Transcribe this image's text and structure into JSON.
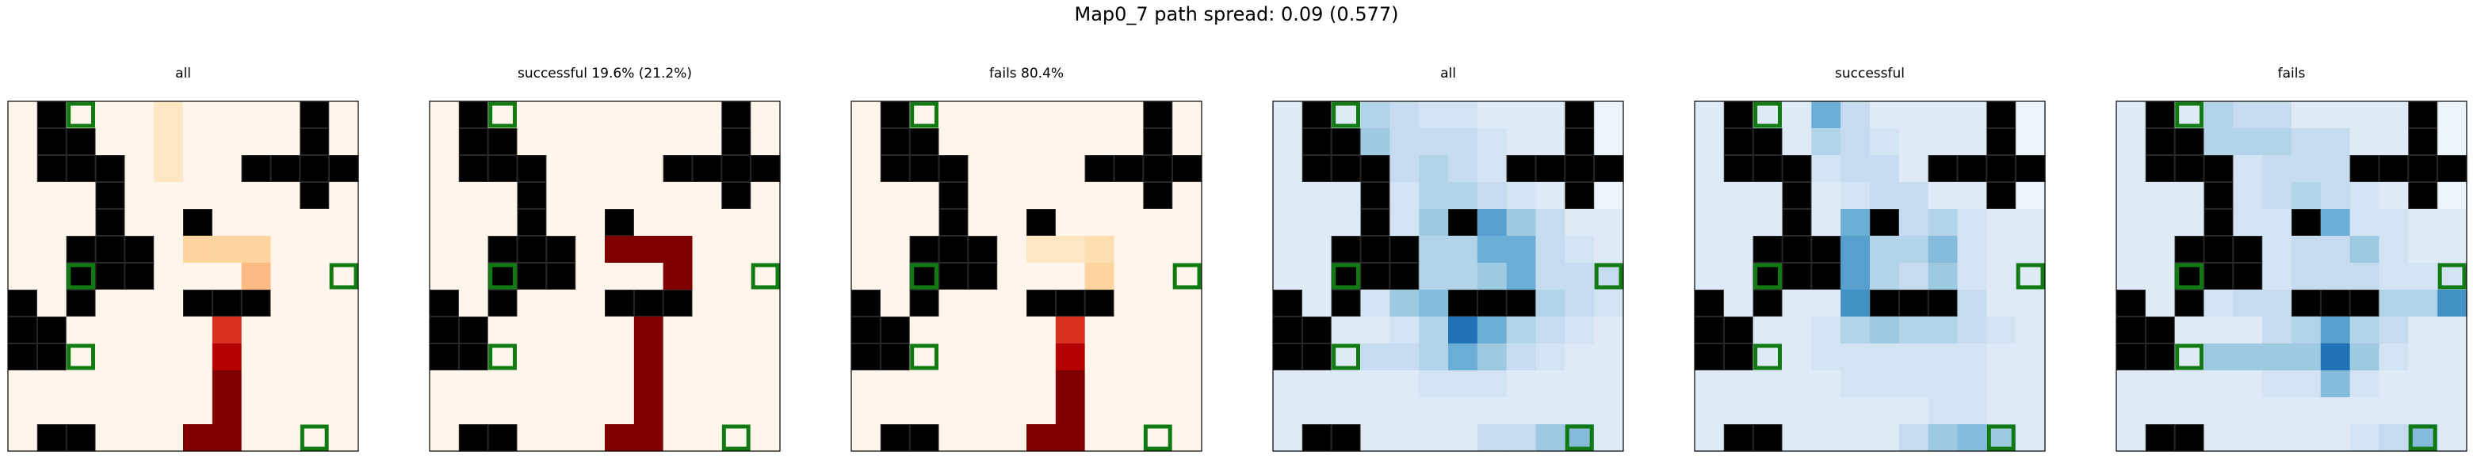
{
  "title": "Map0_7 path spread: 0.09 (0.577)",
  "chart_data": [
    {
      "type": "heatmap",
      "title": "all",
      "colormap": "OrRd",
      "vmax": 8,
      "values": [
        [
          0,
          0,
          0,
          0,
          0,
          1,
          0,
          0,
          0,
          0,
          0,
          0
        ],
        [
          0,
          0,
          0,
          0,
          0,
          1,
          0,
          0,
          0,
          0,
          0,
          0
        ],
        [
          0,
          0,
          0,
          0,
          0,
          1,
          0,
          0,
          0,
          0,
          0,
          0
        ],
        [
          0,
          0,
          0,
          0,
          0,
          0,
          0,
          0,
          0,
          0,
          0,
          0
        ],
        [
          0,
          0,
          0,
          0,
          0,
          0,
          1,
          0,
          0,
          0,
          0,
          0
        ],
        [
          0,
          0,
          0,
          0,
          0,
          0,
          2,
          2,
          2,
          0,
          0,
          0
        ],
        [
          0,
          0,
          0,
          0,
          0,
          0,
          0,
          0,
          3,
          0,
          0,
          0
        ],
        [
          0,
          0,
          0,
          0,
          0,
          0,
          0,
          4,
          4,
          0,
          0,
          0
        ],
        [
          0,
          0,
          0,
          0,
          0,
          0,
          0,
          6,
          0,
          0,
          0,
          0
        ],
        [
          0,
          0,
          0,
          0,
          0,
          0,
          0,
          7,
          0,
          0,
          0,
          0
        ],
        [
          0,
          0,
          0,
          0,
          0,
          0,
          0,
          8,
          0,
          0,
          0,
          0
        ],
        [
          0,
          0,
          0,
          0,
          0,
          0,
          0,
          8,
          0,
          0,
          0,
          0
        ],
        [
          0,
          0,
          0,
          0,
          0,
          0,
          8,
          8,
          0,
          0,
          0,
          0
        ]
      ]
    },
    {
      "type": "heatmap",
      "title": "successful 19.6% (21.2%)",
      "colormap": "OrRd",
      "vmax": 8,
      "values": [
        [
          0,
          0,
          0,
          0,
          0,
          0,
          0,
          0,
          0,
          0,
          0,
          0
        ],
        [
          0,
          0,
          0,
          0,
          0,
          0,
          0,
          0,
          0,
          0,
          0,
          0
        ],
        [
          0,
          0,
          0,
          0,
          0,
          0,
          0,
          0,
          0,
          0,
          0,
          0
        ],
        [
          0,
          0,
          0,
          0,
          0,
          0,
          0,
          0,
          0,
          0,
          0,
          0
        ],
        [
          0,
          0,
          0,
          0,
          0,
          0,
          0,
          0,
          0,
          0,
          0,
          0
        ],
        [
          0,
          0,
          0,
          0,
          0,
          0,
          8,
          8,
          8,
          0,
          0,
          0
        ],
        [
          0,
          0,
          0,
          0,
          0,
          0,
          0,
          0,
          8,
          0,
          0,
          0
        ],
        [
          0,
          0,
          0,
          0,
          0,
          0,
          0,
          8,
          8,
          0,
          0,
          0
        ],
        [
          0,
          0,
          0,
          0,
          0,
          0,
          0,
          8,
          0,
          0,
          0,
          0
        ],
        [
          0,
          0,
          0,
          0,
          0,
          0,
          0,
          8,
          0,
          0,
          0,
          0
        ],
        [
          0,
          0,
          0,
          0,
          0,
          0,
          0,
          8,
          0,
          0,
          0,
          0
        ],
        [
          0,
          0,
          0,
          0,
          0,
          0,
          0,
          8,
          0,
          0,
          0,
          0
        ],
        [
          0,
          0,
          0,
          0,
          0,
          0,
          8,
          8,
          0,
          0,
          0,
          0
        ]
      ]
    },
    {
      "type": "heatmap",
      "title": "fails 80.4%",
      "colormap": "OrRd",
      "vmax": 8,
      "values": [
        [
          0,
          0,
          0,
          0,
          0,
          0,
          0,
          0,
          0,
          0,
          0,
          0
        ],
        [
          0,
          0,
          0,
          0,
          0,
          0,
          0,
          0,
          0,
          0,
          0,
          0
        ],
        [
          0,
          0,
          0,
          0,
          0,
          0,
          0,
          0,
          0,
          0,
          0,
          0
        ],
        [
          0,
          0,
          0,
          0,
          0,
          0,
          0,
          0,
          0,
          0,
          0,
          0
        ],
        [
          0,
          0,
          0,
          0,
          0,
          0,
          0.5,
          0,
          0,
          0,
          0,
          0
        ],
        [
          0,
          0,
          0,
          0,
          0,
          0,
          1,
          1,
          1.5,
          0,
          0,
          0
        ],
        [
          0,
          0,
          0,
          0,
          0,
          0,
          0,
          0,
          2,
          0,
          0,
          0
        ],
        [
          0,
          0,
          0,
          0,
          0,
          0,
          0,
          4,
          4,
          0,
          0,
          0
        ],
        [
          0,
          0,
          0,
          0,
          0,
          0,
          0,
          6,
          0,
          0,
          0,
          0
        ],
        [
          0,
          0,
          0,
          0,
          0,
          0,
          0,
          7,
          0,
          0,
          0,
          0
        ],
        [
          0,
          0,
          0,
          0,
          0,
          0,
          0,
          8,
          0,
          0,
          0,
          0
        ],
        [
          0,
          0,
          0,
          0,
          0,
          0,
          0,
          8,
          0,
          0,
          0,
          0
        ],
        [
          0,
          0,
          0,
          0,
          0,
          0,
          8,
          8,
          0,
          0,
          0,
          0
        ]
      ]
    },
    {
      "type": "heatmap",
      "title": "all",
      "colormap": "Blues",
      "vmax": 8,
      "values": [
        [
          1,
          1,
          1,
          2.5,
          2,
          1.5,
          1.5,
          1,
          1,
          1,
          0.5,
          0.5
        ],
        [
          1,
          1,
          1,
          3,
          2,
          2,
          2,
          1.5,
          1,
          1,
          0.5,
          0.5
        ],
        [
          1,
          1,
          1,
          1.5,
          2,
          2.5,
          2,
          1.5,
          1,
          1,
          0.5,
          0.5
        ],
        [
          1,
          1,
          1,
          1,
          1.5,
          2.5,
          2.5,
          2,
          1.5,
          1,
          0.5,
          0.5
        ],
        [
          1,
          1,
          1,
          1,
          1.5,
          3,
          2.5,
          4.5,
          3,
          2,
          1,
          1
        ],
        [
          1,
          1,
          1,
          1,
          1.5,
          2.5,
          2.5,
          4,
          4,
          2,
          1.5,
          1
        ],
        [
          1,
          1,
          1,
          1,
          2,
          2.5,
          2.5,
          3,
          4,
          2,
          2,
          2
        ],
        [
          1,
          1,
          1,
          1.5,
          3,
          3.5,
          5.5,
          6,
          3,
          2.5,
          2,
          1.5
        ],
        [
          1,
          1,
          1,
          1,
          1.5,
          2.5,
          6,
          4,
          2.5,
          2,
          1.5,
          1
        ],
        [
          1,
          1,
          1,
          2,
          2,
          2.5,
          4,
          3,
          2,
          1.5,
          1,
          1
        ],
        [
          1,
          1,
          1,
          1,
          1,
          1.5,
          1.5,
          1.5,
          1,
          1,
          1,
          1
        ],
        [
          1,
          1,
          1,
          1,
          1,
          1,
          1,
          1,
          1,
          1,
          1,
          1
        ],
        [
          1,
          1,
          1,
          1,
          1,
          1,
          1,
          2,
          2,
          3,
          3.5,
          1
        ]
      ]
    },
    {
      "type": "heatmap",
      "title": "successful",
      "colormap": "Blues",
      "vmax": 8,
      "values": [
        [
          1,
          1,
          1,
          1,
          4,
          2,
          1,
          1,
          1,
          1,
          0.5,
          0.5
        ],
        [
          1,
          1,
          1,
          1,
          2.5,
          2,
          1.5,
          1,
          1,
          1,
          0.5,
          0.5
        ],
        [
          1,
          1,
          1,
          1,
          1.5,
          2,
          2,
          1,
          1,
          1,
          0.5,
          0.5
        ],
        [
          1,
          1,
          1,
          1,
          1,
          1.5,
          2,
          2,
          1,
          1,
          0.5,
          0.5
        ],
        [
          1,
          1,
          1,
          1,
          1,
          4,
          2.5,
          2,
          2.5,
          1.5,
          1,
          1
        ],
        [
          1,
          1,
          1,
          1,
          1,
          4.5,
          2.5,
          2.5,
          3.5,
          1.5,
          1,
          1
        ],
        [
          1,
          1,
          1,
          1,
          1,
          4.5,
          2.5,
          2,
          3,
          1.5,
          1,
          1
        ],
        [
          1,
          1,
          1,
          1,
          1,
          5,
          3.5,
          7,
          6.5,
          2,
          1,
          1
        ],
        [
          1,
          1,
          1,
          1,
          1.5,
          2.5,
          3,
          2.5,
          2.5,
          2,
          1.5,
          1
        ],
        [
          1,
          1,
          1,
          1,
          1.5,
          1.5,
          1.5,
          1.5,
          1.5,
          1.5,
          1,
          1
        ],
        [
          1,
          1,
          1,
          1,
          1,
          1.5,
          1.5,
          1.5,
          1.5,
          1.5,
          1,
          1
        ],
        [
          1,
          1,
          1,
          1,
          1,
          1,
          1,
          1,
          1.5,
          1.5,
          1,
          1
        ],
        [
          1,
          1,
          1,
          1,
          1,
          1,
          1,
          2,
          3,
          3.5,
          3,
          1
        ]
      ]
    },
    {
      "type": "heatmap",
      "title": "fails",
      "colormap": "Blues",
      "vmax": 8,
      "values": [
        [
          1,
          1,
          1,
          2.5,
          2,
          2,
          1,
          1,
          1,
          1,
          0.5,
          0.5
        ],
        [
          1,
          1,
          1,
          2.5,
          2.5,
          2.5,
          2,
          2,
          1,
          1,
          0.5,
          0.5
        ],
        [
          1,
          1,
          1,
          1.5,
          1.5,
          2,
          2,
          2,
          1,
          1,
          0.5,
          0.5
        ],
        [
          1,
          1,
          1,
          1,
          1.5,
          2,
          2.5,
          2,
          1.5,
          1,
          0.5,
          0.5
        ],
        [
          1,
          1,
          1,
          1,
          1.5,
          1.5,
          2,
          4,
          1.5,
          1.5,
          1,
          1
        ],
        [
          1,
          1,
          1,
          1,
          1.5,
          1.5,
          2,
          2,
          3,
          1.5,
          1,
          1
        ],
        [
          1,
          1,
          1,
          1,
          1.5,
          1.5,
          2,
          2,
          2,
          1.5,
          1.5,
          1.5
        ],
        [
          1,
          1,
          1,
          1.5,
          2,
          2,
          2.5,
          4,
          4,
          2.5,
          2.5,
          5
        ],
        [
          1,
          1,
          1,
          1,
          1,
          2,
          2.5,
          4.5,
          2.5,
          2,
          1,
          1
        ],
        [
          1,
          1,
          1,
          3,
          3,
          3,
          3,
          6,
          3,
          1.5,
          1,
          1
        ],
        [
          1,
          1,
          1,
          1,
          1,
          1.5,
          1.5,
          3.5,
          1.5,
          1,
          1,
          1
        ],
        [
          1,
          1,
          1,
          1,
          1,
          1,
          1,
          1,
          1,
          1,
          1,
          1
        ],
        [
          1,
          1,
          1,
          1,
          1,
          1,
          1,
          1,
          1.5,
          2,
          3.5,
          1
        ]
      ]
    }
  ],
  "map": {
    "rows": 13,
    "cols": 12,
    "walls": [
      [
        0,
        1
      ],
      [
        0,
        10
      ],
      [
        1,
        1
      ],
      [
        1,
        2
      ],
      [
        1,
        10
      ],
      [
        2,
        1
      ],
      [
        2,
        2
      ],
      [
        2,
        3
      ],
      [
        2,
        8
      ],
      [
        2,
        9
      ],
      [
        2,
        10
      ],
      [
        2,
        11
      ],
      [
        3,
        3
      ],
      [
        3,
        10
      ],
      [
        4,
        3
      ],
      [
        4,
        6
      ],
      [
        5,
        2
      ],
      [
        5,
        3
      ],
      [
        5,
        4
      ],
      [
        6,
        2
      ],
      [
        6,
        3
      ],
      [
        6,
        4
      ],
      [
        7,
        0
      ],
      [
        7,
        2
      ],
      [
        7,
        6
      ],
      [
        7,
        7
      ],
      [
        7,
        8
      ],
      [
        8,
        0
      ],
      [
        8,
        1
      ],
      [
        9,
        0
      ],
      [
        9,
        1
      ],
      [
        12,
        1
      ],
      [
        12,
        2
      ]
    ],
    "markers": [
      [
        0,
        2
      ],
      [
        6,
        2
      ],
      [
        9,
        2
      ],
      [
        6,
        11
      ],
      [
        12,
        10
      ]
    ],
    "wall_color": "#000000",
    "marker_color": "#127a12"
  }
}
